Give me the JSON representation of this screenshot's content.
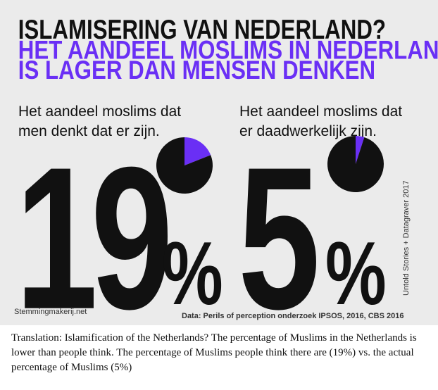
{
  "title": "ISLAMISERING VAN NEDERLAND?",
  "subtitle_lines": [
    "HET AANDEEL MOSLIMS IN NEDERLAND",
    "IS LAGER DAN MENSEN DENKEN"
  ],
  "chart_data": [
    {
      "type": "pie",
      "title_lines": [
        "Het aandeel moslims dat",
        "men denkt dat er zijn."
      ],
      "values": [
        19,
        81
      ],
      "colors": [
        "#6a2ff5",
        "#111111"
      ],
      "unit": "%"
    },
    {
      "type": "pie",
      "title_lines": [
        "Het aandeel moslims dat",
        "er daadwerkelijk zijn."
      ],
      "values": [
        5,
        95
      ],
      "colors": [
        "#6a2ff5",
        "#111111"
      ],
      "unit": "%"
    }
  ],
  "site": "Stemmingmakerij.net",
  "source": "Data: Perils of perception onderzoek IPSOS, 2016, CBS 2016",
  "credit": "Untold Stories + Datagraver 2017",
  "translation": "Translation: Islamification of the Netherlands? The percentage of Muslims in the Netherlands is lower than people think. The percentage of Muslims people think there are (19%) vs. the actual percentage of Muslims (5%)"
}
